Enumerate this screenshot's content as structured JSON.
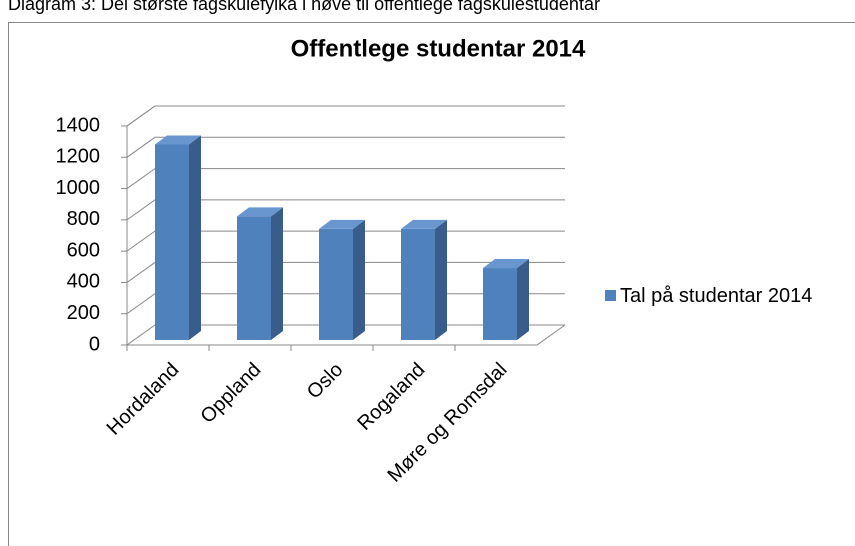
{
  "caption": "Diagram 3: Dei største fagskulefylka i høve til offentlege fagskulestudentar",
  "chart_data": {
    "type": "bar",
    "title": "Offentlege studentar 2014",
    "categories": [
      "Hordaland",
      "Oppland",
      "Oslo",
      "Rogaland",
      "Møre og Romsdal"
    ],
    "series": [
      {
        "name": "Tal på studentar 2014",
        "color": "#4f81bd",
        "values": [
          1250,
          790,
          710,
          710,
          460
        ]
      }
    ],
    "ylim": [
      0,
      1400
    ],
    "yticks": [
      0,
      200,
      400,
      600,
      800,
      1000,
      1200,
      1400
    ],
    "grid": true,
    "legend": "right"
  }
}
